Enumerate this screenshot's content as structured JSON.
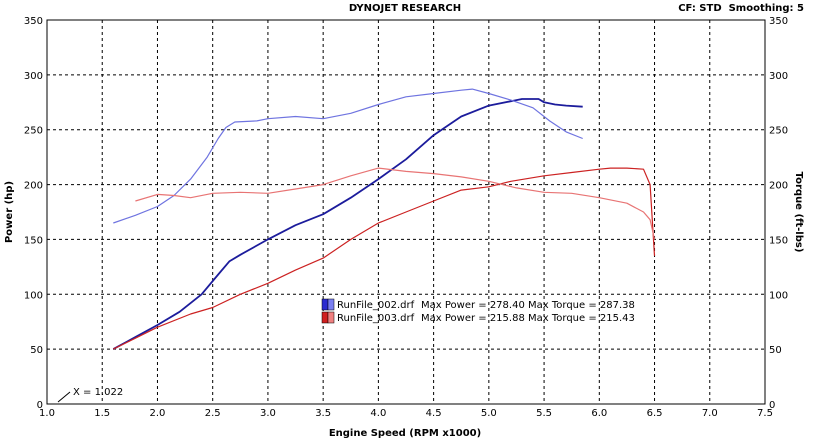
{
  "header": {
    "title": "DYNOJET RESEARCH",
    "settings": "CF: STD  Smoothing: 5"
  },
  "chart_data": {
    "type": "line",
    "title": "DYNOJET RESEARCH",
    "xlabel": "Engine Speed (RPM x1000)",
    "ylabel_left": "Power (hp)",
    "ylabel_right": "Torque (ft-lbs)",
    "xlim": [
      1.0,
      7.5
    ],
    "ylim_left": [
      0,
      350
    ],
    "ylim_right": [
      0,
      350
    ],
    "x_ticks": [
      "1.0",
      "1.5",
      "2.0",
      "2.5",
      "3.0",
      "3.5",
      "4.0",
      "4.5",
      "5.0",
      "5.5",
      "6.0",
      "6.5",
      "7.0",
      "7.5"
    ],
    "y_ticks": [
      "0",
      "50",
      "100",
      "150",
      "200",
      "250",
      "300",
      "350"
    ],
    "grid": true,
    "cursor_label": "X = 1.022",
    "colors": {
      "run002_power": "#1c1c9c",
      "run002_torque": "#6f74e0",
      "run003_power": "#cc2222",
      "run003_torque": "#e87474"
    },
    "series": [
      {
        "color_key": "run002_power",
        "x": [
          1.6,
          1.8,
          2.0,
          2.2,
          2.4,
          2.55,
          2.65,
          2.75,
          3.0,
          3.25,
          3.5,
          3.75,
          4.0,
          4.25,
          4.5,
          4.75,
          5.0,
          5.2,
          5.3,
          5.45,
          5.5,
          5.6,
          5.7,
          5.85
        ],
        "y": [
          50,
          61,
          72,
          84,
          100,
          118,
          130,
          136,
          150,
          163,
          173,
          188,
          205,
          223,
          245,
          262,
          272,
          276,
          278,
          278,
          275,
          273,
          272,
          271
        ]
      },
      {
        "color_key": "run002_torque",
        "x": [
          1.6,
          1.8,
          2.0,
          2.15,
          2.3,
          2.45,
          2.55,
          2.62,
          2.7,
          2.9,
          3.0,
          3.25,
          3.5,
          3.75,
          4.0,
          4.25,
          4.5,
          4.75,
          4.85,
          5.0,
          5.2,
          5.4,
          5.55,
          5.7,
          5.85
        ],
        "y": [
          165,
          172,
          180,
          190,
          205,
          225,
          242,
          252,
          257,
          258,
          260,
          262,
          260,
          265,
          273,
          280,
          283,
          286,
          287,
          283,
          277,
          270,
          258,
          248,
          242
        ]
      },
      {
        "color_key": "run003_power",
        "x": [
          1.6,
          1.8,
          2.0,
          2.3,
          2.5,
          2.75,
          3.0,
          3.25,
          3.5,
          3.75,
          4.0,
          4.25,
          4.5,
          4.75,
          5.0,
          5.2,
          5.5,
          5.75,
          6.0,
          6.1,
          6.25,
          6.4,
          6.46,
          6.5
        ],
        "y": [
          50,
          60,
          70,
          82,
          88,
          100,
          110,
          122,
          133,
          150,
          165,
          175,
          185,
          195,
          198,
          203,
          208,
          211,
          214,
          215,
          215,
          214,
          200,
          135
        ]
      },
      {
        "color_key": "run003_torque",
        "x": [
          1.8,
          2.0,
          2.15,
          2.3,
          2.5,
          2.75,
          3.0,
          3.25,
          3.5,
          3.75,
          4.0,
          4.25,
          4.5,
          4.75,
          5.0,
          5.25,
          5.5,
          5.75,
          6.0,
          6.25,
          6.4,
          6.46,
          6.5
        ],
        "y": [
          185,
          191,
          190,
          188,
          192,
          193,
          192,
          196,
          200,
          208,
          215,
          212,
          210,
          207,
          203,
          197,
          193,
          192,
          188,
          183,
          175,
          168,
          150
        ]
      }
    ],
    "legend": [
      {
        "file": "RunFile_002.drf",
        "max_power": "Max Power = 278.40",
        "max_torque": "Max Torque = 287.38",
        "colors": [
          "#2a2ad0",
          "#7a7ff2"
        ]
      },
      {
        "file": "RunFile_003.drf",
        "max_power": "Max Power = 215.88",
        "max_torque": "Max Torque = 215.43",
        "colors": [
          "#d02020",
          "#f08080"
        ]
      }
    ]
  }
}
